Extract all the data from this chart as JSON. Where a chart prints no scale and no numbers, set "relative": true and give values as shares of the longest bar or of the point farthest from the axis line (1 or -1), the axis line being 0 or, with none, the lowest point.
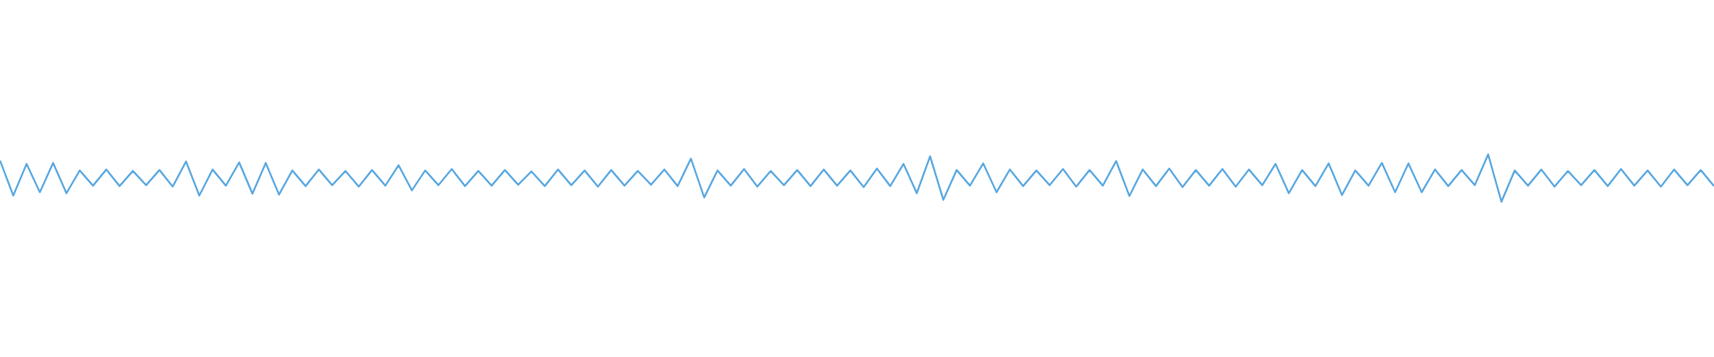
{
  "chart_data": {
    "type": "line",
    "relative": true,
    "color": "#5ca9e0",
    "categories": [
      null,
      null,
      null,
      null,
      null,
      null,
      null,
      null,
      null,
      null,
      null,
      null,
      null,
      null,
      null,
      null,
      null,
      null,
      null,
      null,
      null,
      null,
      null,
      null,
      null,
      null,
      null,
      null,
      null,
      null,
      null,
      null,
      null,
      null,
      null,
      null,
      null,
      null,
      null,
      null,
      null,
      null,
      null,
      null,
      null,
      null,
      null,
      null,
      null,
      null,
      null,
      null,
      null,
      null,
      null,
      null,
      null,
      null,
      null,
      null,
      null,
      null,
      null,
      null,
      null,
      null,
      null,
      null,
      null,
      null,
      null,
      null,
      null,
      null,
      null,
      null,
      null,
      null,
      null,
      null,
      null,
      null,
      null,
      null,
      null,
      null,
      null,
      null,
      null,
      null,
      null,
      null,
      null,
      null,
      null,
      null,
      null,
      null,
      null,
      null,
      null,
      null,
      null,
      null,
      null,
      null,
      null,
      null,
      null,
      null,
      null,
      null,
      null,
      null,
      null,
      null,
      null,
      null,
      null,
      null,
      null,
      null,
      null,
      null,
      null,
      null,
      null,
      null,
      null,
      null
    ],
    "values": [
      0.87,
      0.13,
      0.8,
      0.2,
      0.82,
      0.18,
      0.66,
      0.34,
      0.68,
      0.33,
      0.65,
      0.35,
      0.67,
      0.32,
      0.85,
      0.13,
      0.68,
      0.34,
      0.83,
      0.17,
      0.82,
      0.15,
      0.66,
      0.33,
      0.68,
      0.35,
      0.65,
      0.32,
      0.67,
      0.34,
      0.77,
      0.24,
      0.66,
      0.35,
      0.69,
      0.33,
      0.65,
      0.34,
      0.67,
      0.36,
      0.64,
      0.33,
      0.68,
      0.35,
      0.66,
      0.32,
      0.67,
      0.34,
      0.65,
      0.36,
      0.68,
      0.33,
      0.91,
      0.09,
      0.66,
      0.34,
      0.69,
      0.32,
      0.65,
      0.35,
      0.67,
      0.33,
      0.68,
      0.34,
      0.66,
      0.31,
      0.7,
      0.33,
      0.8,
      0.18,
      0.96,
      0.04,
      0.67,
      0.34,
      0.81,
      0.2,
      0.68,
      0.33,
      0.66,
      0.35,
      0.69,
      0.32,
      0.67,
      0.34,
      0.86,
      0.12,
      0.68,
      0.33,
      0.7,
      0.31,
      0.67,
      0.34,
      0.69,
      0.32,
      0.68,
      0.35,
      0.8,
      0.18,
      0.67,
      0.33,
      0.81,
      0.14,
      0.66,
      0.34,
      0.82,
      0.2,
      0.81,
      0.2,
      0.68,
      0.33,
      0.67,
      0.35,
      1.0,
      0.0,
      0.66,
      0.34,
      0.68,
      0.32,
      0.65,
      0.35,
      0.67,
      0.33,
      0.69,
      0.34,
      0.66,
      0.32,
      0.68,
      0.35,
      0.67,
      0.33
    ]
  }
}
